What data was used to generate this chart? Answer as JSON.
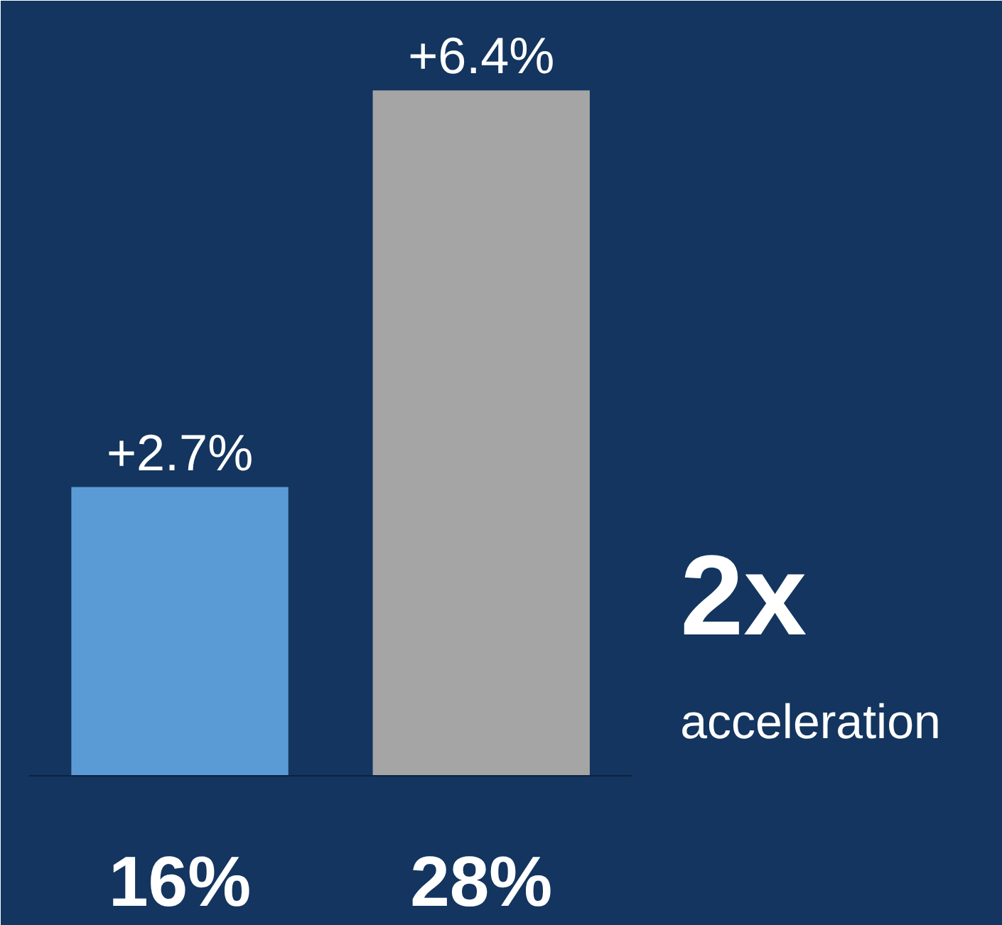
{
  "chart_data": {
    "type": "bar",
    "categories": [
      "16%",
      "28%"
    ],
    "values": [
      2.7,
      6.4
    ],
    "colors": [
      "#5b9bd5",
      "#a5a5a5"
    ],
    "value_labels": [
      "+2.7%",
      "+6.4%"
    ],
    "annotations": [
      "2x",
      "acceleration"
    ],
    "grid": false
  }
}
